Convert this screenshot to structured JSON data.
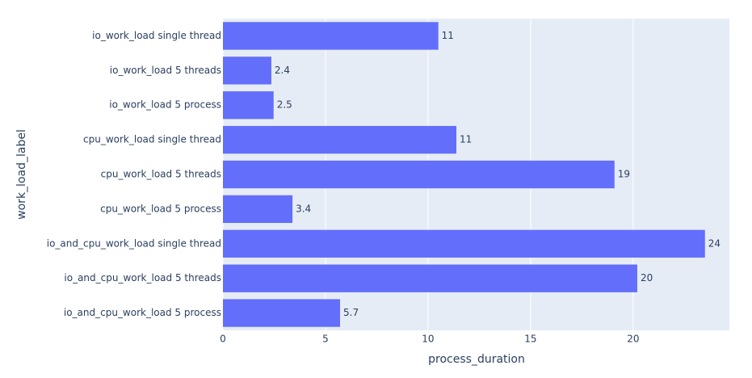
{
  "chart_data": {
    "type": "bar",
    "orientation": "horizontal",
    "x_label": "process_duration",
    "y_label": "work_load_label",
    "categories": [
      "io_work_load single thread",
      "io_work_load 5 threads",
      "io_work_load 5 process",
      "cpu_work_load single thread",
      "cpu_work_load 5 threads",
      "cpu_work_load 5 process",
      "io_and_cpu_work_load single thread",
      "io_and_cpu_work_load 5 threads",
      "io_and_cpu_work_load 5 process"
    ],
    "values": [
      10.5,
      2.36,
      2.47,
      11.38,
      19.09,
      3.39,
      23.5,
      20.2,
      5.71
    ],
    "value_labels": [
      "11",
      "2.4",
      "2.5",
      "11",
      "19",
      "3.4",
      "24",
      "20",
      "5.7"
    ],
    "color": "#636efa",
    "xlim": [
      0,
      24.69
    ],
    "xticks": [
      0,
      5,
      10,
      15,
      20
    ],
    "grid": true
  }
}
